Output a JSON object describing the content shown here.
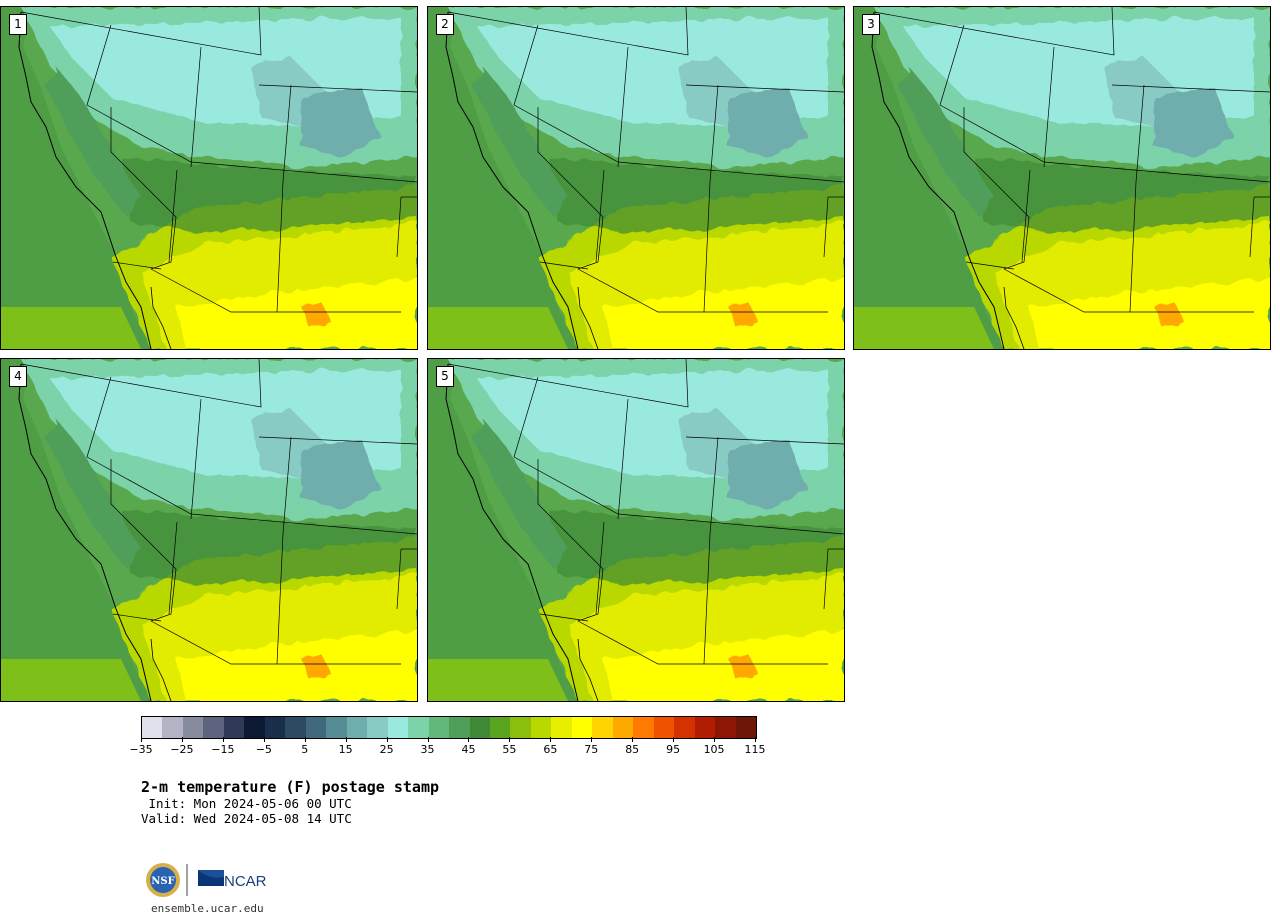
{
  "panels": [
    {
      "label": "1"
    },
    {
      "label": "2"
    },
    {
      "label": "3"
    },
    {
      "label": "4"
    },
    {
      "label": "5"
    }
  ],
  "colorbar": {
    "colors": [
      "#dfe2ea",
      "#b2b4c6",
      "#878c9f",
      "#5d6480",
      "#303958",
      "#0c1a33",
      "#182e49",
      "#2d4a62",
      "#40697b",
      "#568c95",
      "#70aeae",
      "#88cbc4",
      "#9ae9df",
      "#7cd2a9",
      "#62b87a",
      "#4f9e5a",
      "#3f8a36",
      "#5aa520",
      "#8bbf0d",
      "#b9d800",
      "#e7ee00",
      "#ffff00",
      "#ffd400",
      "#ffa800",
      "#ff7a00",
      "#f05200",
      "#d43200",
      "#b01d00",
      "#8b1704",
      "#6e1608"
    ],
    "tick_labels": [
      "−35",
      "−25",
      "−15",
      "−5",
      "5",
      "15",
      "25",
      "35",
      "45",
      "55",
      "65",
      "75",
      "85",
      "95",
      "105",
      "115"
    ]
  },
  "title": "2-m temperature (F) postage stamp",
  "init": " Init: Mon 2024-05-06 00 UTC",
  "valid": "Valid: Wed 2024-05-08 14 UTC",
  "logos": {
    "nsf": "NSF",
    "ncar": "NCAR"
  },
  "url": "ensemble.ucar.edu"
}
